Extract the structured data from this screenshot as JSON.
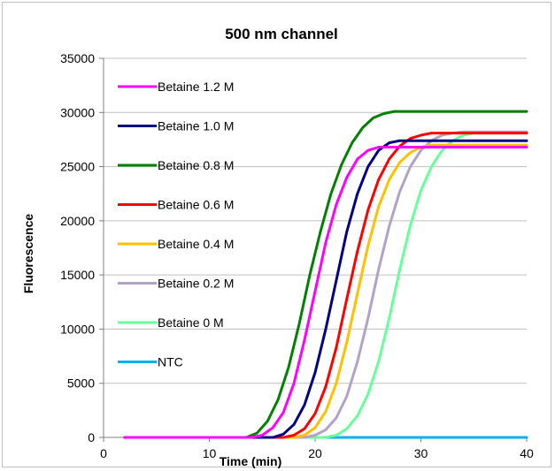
{
  "chart_data": {
    "type": "line",
    "title": "500 nm channel",
    "xlabel": "Time (min)",
    "ylabel": "Fluorescence",
    "xlim": [
      0,
      40
    ],
    "ylim": [
      0,
      35000
    ],
    "x_ticks": [
      0,
      10,
      20,
      30,
      40
    ],
    "y_ticks": [
      0,
      5000,
      10000,
      15000,
      20000,
      25000,
      30000,
      35000
    ],
    "grid": "horizontal",
    "legend_position": "top-left",
    "series": [
      {
        "name": "Betaine 1.2 M",
        "color": "#ff00ff",
        "x": [
          2,
          14,
          15,
          16,
          17,
          18,
          19,
          20,
          21,
          22,
          23,
          24,
          25,
          26,
          27,
          28,
          40
        ],
        "y": [
          0,
          0,
          200,
          900,
          2300,
          5000,
          9000,
          13500,
          18000,
          21500,
          24000,
          25700,
          26500,
          26800,
          26800,
          26800,
          26800
        ]
      },
      {
        "name": "Betaine 1.0 M",
        "color": "#000080",
        "x": [
          2,
          16,
          17,
          18,
          19,
          20,
          21,
          22,
          23,
          24,
          25,
          26,
          27,
          28,
          29,
          40
        ],
        "y": [
          0,
          0,
          300,
          1200,
          3000,
          6000,
          10000,
          14500,
          19000,
          22500,
          25000,
          26500,
          27200,
          27400,
          27400,
          27400
        ]
      },
      {
        "name": "Betaine 0.8 M",
        "color": "#008000",
        "x": [
          2,
          13.5,
          14.5,
          15.5,
          16.5,
          17.5,
          18.5,
          19.5,
          20.5,
          21.5,
          22.5,
          23.5,
          24.5,
          25.5,
          26.5,
          27.5,
          28.5,
          40
        ],
        "y": [
          0,
          0,
          400,
          1500,
          3500,
          6500,
          10500,
          15000,
          19000,
          22500,
          25200,
          27200,
          28600,
          29500,
          29900,
          30100,
          30100,
          30100
        ]
      },
      {
        "name": "Betaine 0.6 M",
        "color": "#ff0000",
        "x": [
          2,
          17,
          18,
          19,
          20,
          21,
          22,
          23,
          24,
          25,
          26,
          27,
          28,
          29,
          30,
          31,
          32,
          40
        ],
        "y": [
          0,
          0,
          200,
          800,
          2200,
          4700,
          8300,
          12800,
          17200,
          21000,
          23800,
          25700,
          26900,
          27600,
          27900,
          28100,
          28100,
          28100
        ]
      },
      {
        "name": "Betaine 0.4 M",
        "color": "#ffc000",
        "x": [
          2,
          18,
          19,
          20,
          21,
          22,
          23,
          24,
          25,
          26,
          27,
          28,
          29,
          30,
          31,
          32,
          40
        ],
        "y": [
          0,
          0,
          200,
          900,
          2400,
          5000,
          8800,
          13300,
          17700,
          21300,
          23800,
          25400,
          26300,
          26800,
          27000,
          27000,
          27000
        ]
      },
      {
        "name": "Betaine 0.2 M",
        "color": "#b3a2c7",
        "x": [
          2,
          19,
          20,
          21,
          22,
          23,
          24,
          25,
          26,
          27,
          28,
          29,
          30,
          31,
          32,
          33,
          34,
          35,
          36,
          40
        ],
        "y": [
          0,
          0,
          200,
          700,
          1800,
          3800,
          7000,
          11000,
          15500,
          19500,
          22700,
          25000,
          26500,
          27400,
          27900,
          28100,
          28200,
          28200,
          28200,
          28200
        ]
      },
      {
        "name": "Betaine 0 M",
        "color": "#66ff99",
        "x": [
          2,
          21,
          22,
          23,
          24,
          25,
          26,
          27,
          28,
          29,
          30,
          31,
          32,
          33,
          34,
          35,
          36,
          37,
          40
        ],
        "y": [
          0,
          0,
          200,
          800,
          2000,
          4000,
          7000,
          11000,
          15500,
          19600,
          22800,
          25000,
          26500,
          27400,
          27900,
          28100,
          28100,
          28100,
          28100
        ]
      },
      {
        "name": "NTC",
        "color": "#00b0f0",
        "x": [
          2,
          40
        ],
        "y": [
          0,
          0
        ]
      }
    ]
  }
}
